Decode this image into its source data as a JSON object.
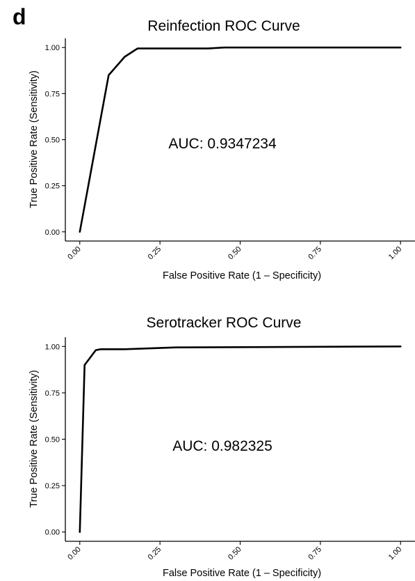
{
  "figure": {
    "panel_label": "d"
  },
  "chart_data": [
    {
      "type": "line",
      "title": "Reinfection ROC Curve",
      "xlabel": "False Positive Rate (1 – Specificity)",
      "ylabel": "True Positive Rate (Sensitivity)",
      "xlim": [
        0,
        1
      ],
      "ylim": [
        0,
        1
      ],
      "x_ticks": [
        0,
        0.25,
        0.5,
        0.75,
        1
      ],
      "x_tick_labels": [
        "0.00",
        "0.25",
        "0.50",
        "0.75",
        "1.00"
      ],
      "y_ticks": [
        0,
        0.25,
        0.5,
        0.75,
        1
      ],
      "y_tick_labels": [
        "0.00",
        "0.25",
        "0.50",
        "0.75",
        "1.00"
      ],
      "grid": false,
      "annotation": "AUC: 0.9347234",
      "series": [
        {
          "x": [
            0.0,
            0.09,
            0.14,
            0.18,
            0.4,
            0.45,
            1.0
          ],
          "y": [
            0.0,
            0.85,
            0.95,
            0.995,
            0.995,
            1.0,
            1.0
          ]
        }
      ]
    },
    {
      "type": "line",
      "title": "Serotracker ROC Curve",
      "xlabel": "False Positive Rate (1 – Specificity)",
      "ylabel": "True Positive Rate (Sensitivity)",
      "xlim": [
        0,
        1
      ],
      "ylim": [
        0,
        1
      ],
      "x_ticks": [
        0,
        0.25,
        0.5,
        0.75,
        1
      ],
      "x_tick_labels": [
        "0.00",
        "0.25",
        "0.50",
        "0.75",
        "1.00"
      ],
      "y_ticks": [
        0,
        0.25,
        0.5,
        0.75,
        1
      ],
      "y_tick_labels": [
        "0.00",
        "0.25",
        "0.50",
        "0.75",
        "1.00"
      ],
      "grid": false,
      "annotation": "AUC: 0.982325",
      "series": [
        {
          "x": [
            0.0,
            0.015,
            0.05,
            0.065,
            0.14,
            0.3,
            1.0
          ],
          "y": [
            0.0,
            0.9,
            0.98,
            0.985,
            0.985,
            0.995,
            1.0
          ]
        }
      ]
    }
  ]
}
